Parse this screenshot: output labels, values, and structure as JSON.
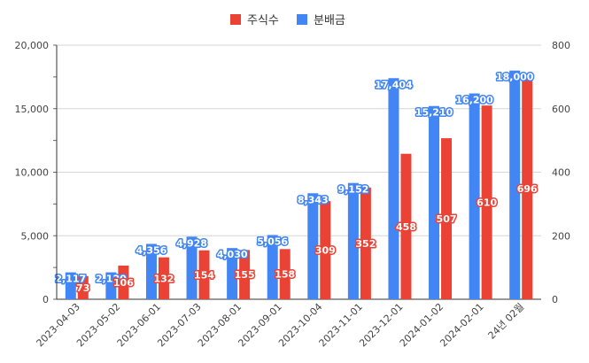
{
  "chart_data": {
    "type": "bar",
    "categories": [
      "2023-04-03",
      "2023-05-02",
      "2023-06-01",
      "2023-07-03",
      "2023-08-01",
      "2023-09-01",
      "2023-10-04",
      "2023-11-01",
      "2023-12-01",
      "2024-01-02",
      "2024-02-01",
      "24년 02월"
    ],
    "series": [
      {
        "name": "분배금",
        "axis": "left",
        "color": "#4285f4",
        "values": [
          2117,
          2120,
          4356,
          4928,
          4030,
          5056,
          8343,
          9152,
          17404,
          15210,
          16200,
          18000
        ],
        "labels": [
          "2,117",
          "2,120",
          "4,356",
          "4,928",
          "4,030",
          "5,056",
          "8,343",
          "9,152",
          "17,404",
          "15,210",
          "16,200",
          "18,000"
        ]
      },
      {
        "name": "주식수",
        "axis": "right",
        "color": "#ea4335",
        "values": [
          73,
          106,
          132,
          154,
          155,
          158,
          309,
          352,
          458,
          507,
          610,
          696
        ],
        "labels": [
          "73",
          "106",
          "132",
          "154",
          "155",
          "158",
          "309",
          "352",
          "458",
          "507",
          "610",
          "696"
        ]
      }
    ],
    "y_left": {
      "range": [
        0,
        20000
      ],
      "ticks": [
        "0",
        "5,000",
        "10,000",
        "15,000",
        "20,000"
      ]
    },
    "y_right": {
      "range": [
        0,
        800
      ],
      "ticks": [
        "0",
        "200",
        "400",
        "600",
        "800"
      ]
    },
    "legend": [
      "주식수",
      "분배금"
    ],
    "legend_position": "top",
    "grid": true
  }
}
